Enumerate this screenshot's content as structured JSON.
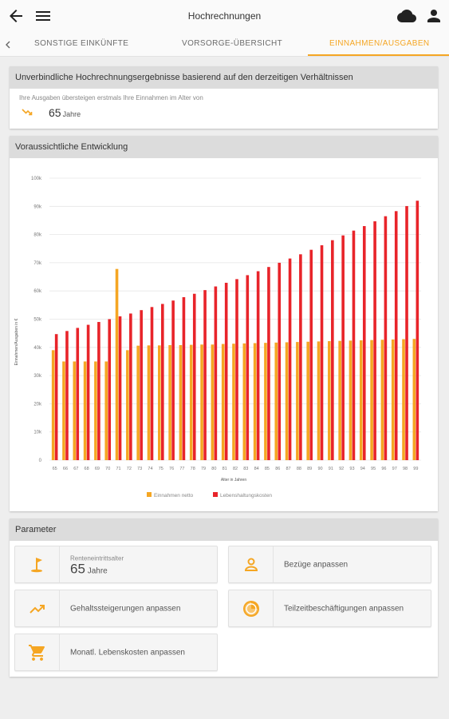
{
  "appbar": {
    "title": "Hochrechnungen"
  },
  "tabs": [
    {
      "label": "SONSTIGE EINKÜNFTE"
    },
    {
      "label": "VORSORGE-ÜBERSICHT"
    },
    {
      "label": "EINNAHMEN/AUSGABEN"
    }
  ],
  "result": {
    "header": "Unverbindliche Hochrechnungsergebnisse basierend auf den derzeitigen Verhältnissen",
    "subtitle": "Ihre Ausgaben übersteigen erstmals Ihre Einnahmen im Alter von",
    "age": "65",
    "unit": "Jahre"
  },
  "development": {
    "header": "Voraussichtliche Entwicklung"
  },
  "chart_data": {
    "type": "bar",
    "ylabel": "Einnahmen/Ausgaben in €",
    "xlabel": "Alter in Jahren",
    "ylim": [
      0,
      100000
    ],
    "y_ticks": [
      "0",
      "10k",
      "20k",
      "30k",
      "40k",
      "50k",
      "60k",
      "70k",
      "80k",
      "90k",
      "100k"
    ],
    "categories": [
      "65",
      "66",
      "67",
      "68",
      "69",
      "70",
      "71",
      "72",
      "73",
      "74",
      "75",
      "76",
      "77",
      "78",
      "79",
      "80",
      "81",
      "82",
      "83",
      "84",
      "85",
      "86",
      "87",
      "88",
      "89",
      "90",
      "91",
      "92",
      "93",
      "94",
      "95",
      "96",
      "97",
      "98",
      "99"
    ],
    "series": [
      {
        "name": "Einnahmen netto",
        "color": "#f5a623",
        "values": [
          39000,
          35000,
          35000,
          35000,
          35000,
          35000,
          67800,
          39000,
          40600,
          40700,
          40700,
          40800,
          40800,
          40900,
          41000,
          41000,
          41200,
          41300,
          41400,
          41500,
          41600,
          41700,
          41800,
          41900,
          42000,
          42100,
          42200,
          42300,
          42400,
          42500,
          42600,
          42700,
          42800,
          42900,
          43000
        ]
      },
      {
        "name": "Lebenshaltungskosten",
        "color": "#e8242a",
        "values": [
          44700,
          45800,
          46900,
          48000,
          49000,
          50000,
          51000,
          52000,
          53200,
          54300,
          55400,
          56600,
          57800,
          59000,
          60300,
          61600,
          62900,
          64200,
          65600,
          67000,
          68500,
          70000,
          71500,
          73000,
          74600,
          76200,
          78000,
          79700,
          81400,
          83000,
          84700,
          86500,
          88300,
          90100,
          92000
        ]
      }
    ]
  },
  "parameters": {
    "header": "Parameter",
    "retirement": {
      "label": "Renteneintrittsalter",
      "value": "65",
      "unit": "Jahre"
    },
    "income_adjust": "Bezüge anpassen",
    "salary_increase": "Gehaltssteigerungen anpassen",
    "part_time": "Teilzeitbeschäftigungen anpassen",
    "living_costs": "Monatl. Lebenskosten anpassen"
  },
  "colors": {
    "accent": "#f5a623",
    "expenses": "#e8242a"
  }
}
